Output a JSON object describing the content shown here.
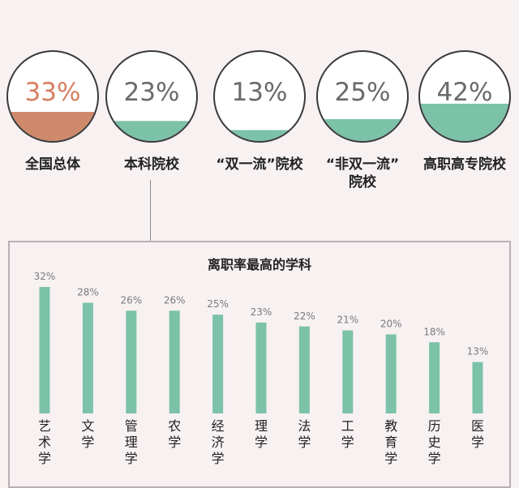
{
  "colors": {
    "bar": "#7cc2a8",
    "fill_highlight": "#cf8a6b",
    "fill_default": "#7cc2a8",
    "pct_highlight": "#d48061",
    "pct_default": "#6a6a6a",
    "circle_stroke": "#3a3a3a",
    "circle_bg": "#ffffff"
  },
  "circles": [
    {
      "pct_text": "33%",
      "fill": 0.33,
      "label": "全国总体",
      "highlight": true
    },
    {
      "pct_text": "23%",
      "fill": 0.23,
      "label": "本科院校",
      "highlight": false
    },
    {
      "pct_text": "13%",
      "fill": 0.13,
      "label": "“双一流”院校",
      "highlight": false
    },
    {
      "pct_text": "25%",
      "fill": 0.25,
      "label": "“非双一流”\n院校",
      "highlight": false
    },
    {
      "pct_text": "42%",
      "fill": 0.42,
      "label": "高职高专院校",
      "highlight": false
    }
  ],
  "chart_data": {
    "type": "bar",
    "title": "离职率最高的学科",
    "categories": [
      "艺术学",
      "文学",
      "管理学",
      "农学",
      "经济学",
      "理学",
      "法学",
      "工学",
      "教育学",
      "历史学",
      "医学"
    ],
    "values": [
      32,
      28,
      26,
      26,
      25,
      23,
      22,
      21,
      20,
      18,
      13
    ],
    "value_labels": [
      "32%",
      "28%",
      "26%",
      "26%",
      "25%",
      "23%",
      "22%",
      "21%",
      "20%",
      "18%",
      "13%"
    ],
    "unit": "%",
    "ylim": [
      0,
      32
    ],
    "grid": false
  }
}
